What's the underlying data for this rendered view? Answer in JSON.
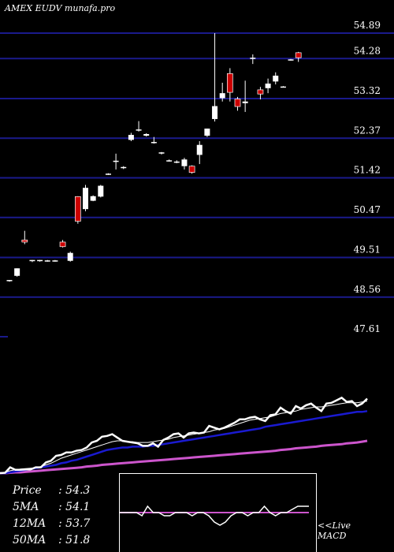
{
  "header": {
    "title": "AMEX  EUDV munafa.pro"
  },
  "stats": [
    {
      "key": "Price",
      "value": ": 54.3"
    },
    {
      "key": "5MA",
      "value": ": 54.1"
    },
    {
      "key": "12MA",
      "value": ": 53.7"
    },
    {
      "key": "50MA",
      "value": ": 51.8"
    }
  ],
  "live_label": {
    "line1": "<<Live",
    "line2": "MACD"
  },
  "colors": {
    "background": "#000000",
    "grid": "#1a1a8c",
    "up_candle": "#ffffff",
    "down_candle": "#cc0000",
    "price_line": "#ffffff",
    "ma_short": "#ffffff",
    "ma_mid": "#1a1ad0",
    "ma_long": "#cc55cc",
    "macd_line": "#ffffff",
    "macd_signal": "#cc55cc"
  },
  "chart_data": {
    "type": "candlestick",
    "y_ticks": [
      54.89,
      54.28,
      53.32,
      52.37,
      51.42,
      50.47,
      49.51,
      48.56,
      47.61
    ],
    "ylim": [
      47.61,
      54.89
    ],
    "candles": [
      {
        "o": 48.95,
        "h": 48.97,
        "l": 48.93,
        "c": 48.97
      },
      {
        "o": 49.07,
        "h": 49.25,
        "l": 49.05,
        "c": 49.25
      },
      {
        "o": 49.93,
        "h": 50.15,
        "l": 49.83,
        "c": 49.88
      },
      {
        "o": 49.43,
        "h": 49.45,
        "l": 49.4,
        "c": 49.45
      },
      {
        "o": 49.43,
        "h": 49.45,
        "l": 49.41,
        "c": 49.45
      },
      {
        "o": 49.43,
        "h": 49.45,
        "l": 49.41,
        "c": 49.44
      },
      {
        "o": 49.43,
        "h": 49.45,
        "l": 49.41,
        "c": 49.44
      },
      {
        "o": 49.88,
        "h": 49.93,
        "l": 49.75,
        "c": 49.77
      },
      {
        "o": 49.43,
        "h": 49.65,
        "l": 49.41,
        "c": 49.62
      },
      {
        "o": 50.97,
        "h": 50.98,
        "l": 50.32,
        "c": 50.38
      },
      {
        "o": 50.67,
        "h": 51.25,
        "l": 50.62,
        "c": 51.18
      },
      {
        "o": 50.87,
        "h": 51.0,
        "l": 50.86,
        "c": 50.98
      },
      {
        "o": 50.97,
        "h": 51.25,
        "l": 50.95,
        "c": 51.23
      },
      {
        "o": 51.51,
        "h": 51.53,
        "l": 51.49,
        "c": 51.52
      },
      {
        "o": 51.83,
        "h": 52.0,
        "l": 51.62,
        "c": 51.83
      },
      {
        "o": 51.67,
        "h": 51.7,
        "l": 51.63,
        "c": 51.68
      },
      {
        "o": 52.33,
        "h": 52.5,
        "l": 52.3,
        "c": 52.45
      },
      {
        "o": 52.57,
        "h": 52.78,
        "l": 52.53,
        "c": 52.58
      },
      {
        "o": 52.43,
        "h": 52.49,
        "l": 52.41,
        "c": 52.47
      },
      {
        "o": 52.27,
        "h": 52.4,
        "l": 52.24,
        "c": 52.28
      },
      {
        "o": 52.01,
        "h": 52.04,
        "l": 51.98,
        "c": 52.03
      },
      {
        "o": 51.83,
        "h": 51.86,
        "l": 51.81,
        "c": 51.84
      },
      {
        "o": 51.79,
        "h": 51.84,
        "l": 51.77,
        "c": 51.81
      },
      {
        "o": 51.7,
        "h": 51.9,
        "l": 51.62,
        "c": 51.86
      },
      {
        "o": 51.7,
        "h": 51.72,
        "l": 51.52,
        "c": 51.55
      },
      {
        "o": 51.97,
        "h": 52.3,
        "l": 51.75,
        "c": 52.21
      },
      {
        "o": 52.43,
        "h": 52.6,
        "l": 52.4,
        "c": 52.6
      },
      {
        "o": 52.83,
        "h": 54.89,
        "l": 52.77,
        "c": 53.14
      },
      {
        "o": 53.33,
        "h": 53.7,
        "l": 53.25,
        "c": 53.45
      },
      {
        "o": 53.92,
        "h": 54.05,
        "l": 53.25,
        "c": 53.47
      },
      {
        "o": 53.31,
        "h": 53.36,
        "l": 53.03,
        "c": 53.13
      },
      {
        "o": 53.21,
        "h": 53.75,
        "l": 53.0,
        "c": 53.25
      },
      {
        "o": 54.28,
        "h": 54.38,
        "l": 54.15,
        "c": 54.3
      },
      {
        "o": 53.53,
        "h": 53.6,
        "l": 53.3,
        "c": 53.43
      },
      {
        "o": 53.57,
        "h": 53.8,
        "l": 53.45,
        "c": 53.68
      },
      {
        "o": 53.73,
        "h": 53.95,
        "l": 53.66,
        "c": 53.87
      },
      {
        "o": 53.6,
        "h": 53.62,
        "l": 53.59,
        "c": 53.61
      },
      {
        "o": 54.25,
        "h": 54.27,
        "l": 54.23,
        "c": 54.26
      },
      {
        "o": 54.42,
        "h": 54.44,
        "l": 54.2,
        "c": 54.3
      }
    ],
    "ma_lines": {
      "price": [
        0.0,
        0.005,
        0.07,
        0.04,
        0.04,
        0.045,
        0.045,
        0.07,
        0.07,
        0.13,
        0.15,
        0.21,
        0.22,
        0.25,
        0.25,
        0.27,
        0.28,
        0.31,
        0.37,
        0.39,
        0.44,
        0.45,
        0.47,
        0.43,
        0.39,
        0.38,
        0.37,
        0.36,
        0.33,
        0.33,
        0.36,
        0.32,
        0.4,
        0.43,
        0.47,
        0.48,
        0.43,
        0.48,
        0.49,
        0.48,
        0.49,
        0.57,
        0.55,
        0.53,
        0.55,
        0.58,
        0.61,
        0.65,
        0.65,
        0.67,
        0.68,
        0.65,
        0.63,
        0.7,
        0.71,
        0.79,
        0.75,
        0.72,
        0.81,
        0.78,
        0.82,
        0.84,
        0.79,
        0.75,
        0.84,
        0.85,
        0.88,
        0.91,
        0.86,
        0.87,
        0.81,
        0.84,
        0.9
      ],
      "ma_short": [
        0.0,
        0.01,
        0.03,
        0.04,
        0.05,
        0.055,
        0.06,
        0.065,
        0.08,
        0.1,
        0.12,
        0.15,
        0.18,
        0.2,
        0.22,
        0.24,
        0.26,
        0.28,
        0.3,
        0.32,
        0.34,
        0.36,
        0.38,
        0.39,
        0.39,
        0.38,
        0.38,
        0.37,
        0.37,
        0.37,
        0.38,
        0.39,
        0.4,
        0.41,
        0.43,
        0.44,
        0.45,
        0.46,
        0.47,
        0.48,
        0.49,
        0.5,
        0.52,
        0.53,
        0.54,
        0.56,
        0.58,
        0.6,
        0.62,
        0.64,
        0.65,
        0.66,
        0.67,
        0.68,
        0.7,
        0.72,
        0.73,
        0.74,
        0.75,
        0.77,
        0.78,
        0.79,
        0.8,
        0.8,
        0.81,
        0.82,
        0.83,
        0.84,
        0.85,
        0.85,
        0.85,
        0.86,
        0.87
      ],
      "ma_mid": [
        0.0,
        0.0,
        0.01,
        0.02,
        0.03,
        0.04,
        0.05,
        0.06,
        0.07,
        0.08,
        0.09,
        0.1,
        0.12,
        0.13,
        0.15,
        0.16,
        0.18,
        0.2,
        0.22,
        0.24,
        0.26,
        0.28,
        0.29,
        0.3,
        0.31,
        0.31,
        0.32,
        0.32,
        0.32,
        0.33,
        0.33,
        0.34,
        0.35,
        0.36,
        0.37,
        0.38,
        0.39,
        0.4,
        0.41,
        0.42,
        0.43,
        0.44,
        0.45,
        0.46,
        0.47,
        0.48,
        0.49,
        0.5,
        0.51,
        0.52,
        0.53,
        0.54,
        0.56,
        0.57,
        0.58,
        0.59,
        0.6,
        0.61,
        0.62,
        0.63,
        0.64,
        0.65,
        0.66,
        0.67,
        0.68,
        0.69,
        0.7,
        0.71,
        0.72,
        0.73,
        0.74,
        0.74,
        0.75
      ],
      "ma_long": [
        0.0,
        0.0,
        0.005,
        0.01,
        0.01,
        0.015,
        0.02,
        0.025,
        0.03,
        0.035,
        0.04,
        0.045,
        0.05,
        0.055,
        0.06,
        0.065,
        0.07,
        0.08,
        0.085,
        0.09,
        0.1,
        0.105,
        0.11,
        0.115,
        0.12,
        0.125,
        0.13,
        0.135,
        0.14,
        0.145,
        0.15,
        0.155,
        0.16,
        0.165,
        0.17,
        0.175,
        0.18,
        0.185,
        0.19,
        0.195,
        0.2,
        0.205,
        0.21,
        0.215,
        0.22,
        0.225,
        0.23,
        0.235,
        0.24,
        0.245,
        0.25,
        0.255,
        0.26,
        0.265,
        0.27,
        0.28,
        0.285,
        0.29,
        0.3,
        0.305,
        0.31,
        0.315,
        0.32,
        0.33,
        0.335,
        0.34,
        0.345,
        0.35,
        0.36,
        0.365,
        0.37,
        0.38,
        0.39
      ]
    },
    "macd": {
      "macd_line": [
        0.5,
        0.5,
        0.5,
        0.5,
        0.45,
        0.6,
        0.5,
        0.5,
        0.45,
        0.45,
        0.5,
        0.5,
        0.5,
        0.45,
        0.5,
        0.5,
        0.45,
        0.35,
        0.3,
        0.35,
        0.45,
        0.5,
        0.5,
        0.45,
        0.5,
        0.5,
        0.6,
        0.5,
        0.45,
        0.5,
        0.5,
        0.55,
        0.6,
        0.6,
        0.6
      ],
      "signal_line": [
        0.5,
        0.5,
        0.5,
        0.5,
        0.5,
        0.5,
        0.5,
        0.5,
        0.5,
        0.5,
        0.5,
        0.5,
        0.5,
        0.5,
        0.5,
        0.5,
        0.5,
        0.5,
        0.5,
        0.5,
        0.5,
        0.5,
        0.5,
        0.5,
        0.5,
        0.5,
        0.5,
        0.5,
        0.5,
        0.5,
        0.5,
        0.5,
        0.5,
        0.5,
        0.5
      ]
    }
  }
}
